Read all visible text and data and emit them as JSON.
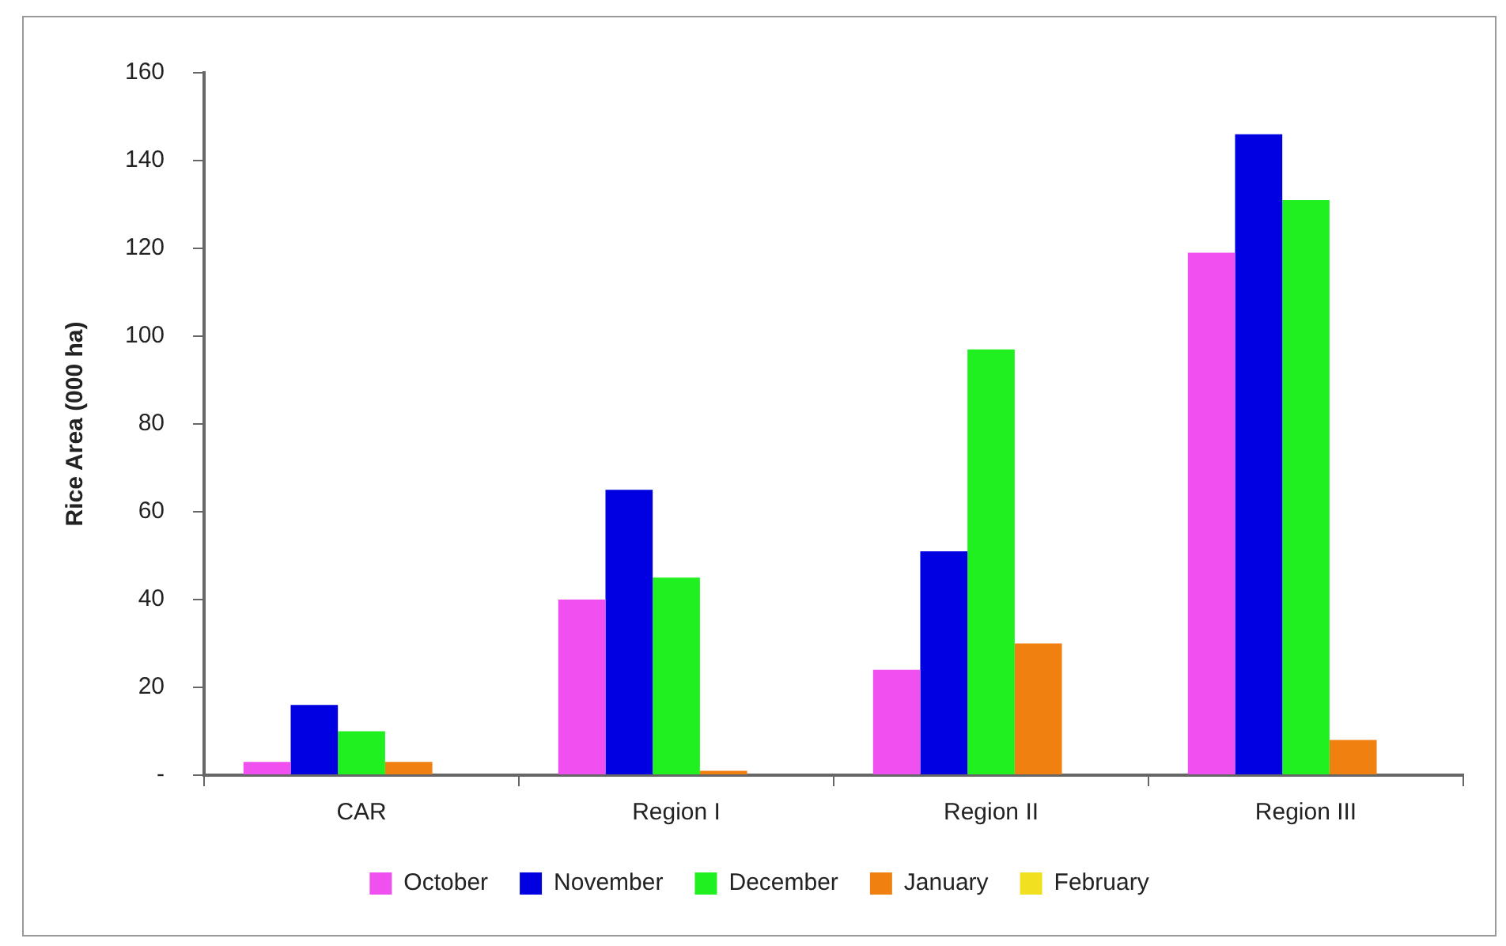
{
  "chart_data": {
    "type": "bar",
    "ylabel": "Rice Area (000 ha)",
    "categories": [
      "CAR",
      "Region I",
      "Region II",
      "Region III"
    ],
    "series": [
      {
        "name": "October",
        "color": "#f050f0",
        "values": [
          3,
          40,
          24,
          119
        ]
      },
      {
        "name": "November",
        "color": "#0000e0",
        "values": [
          16,
          65,
          51,
          146
        ]
      },
      {
        "name": "December",
        "color": "#20f020",
        "values": [
          10,
          45,
          97,
          131
        ]
      },
      {
        "name": "January",
        "color": "#f08010",
        "values": [
          3,
          1,
          30,
          8
        ]
      },
      {
        "name": "February",
        "color": "#f0e020",
        "values": [
          0,
          0,
          0,
          0
        ]
      }
    ],
    "ylim": [
      0,
      160
    ],
    "yticks": [
      {
        "value": 0,
        "label": "-"
      },
      20,
      40,
      60,
      80,
      100,
      120,
      140,
      160
    ],
    "grid": false,
    "legend": "bottom"
  }
}
